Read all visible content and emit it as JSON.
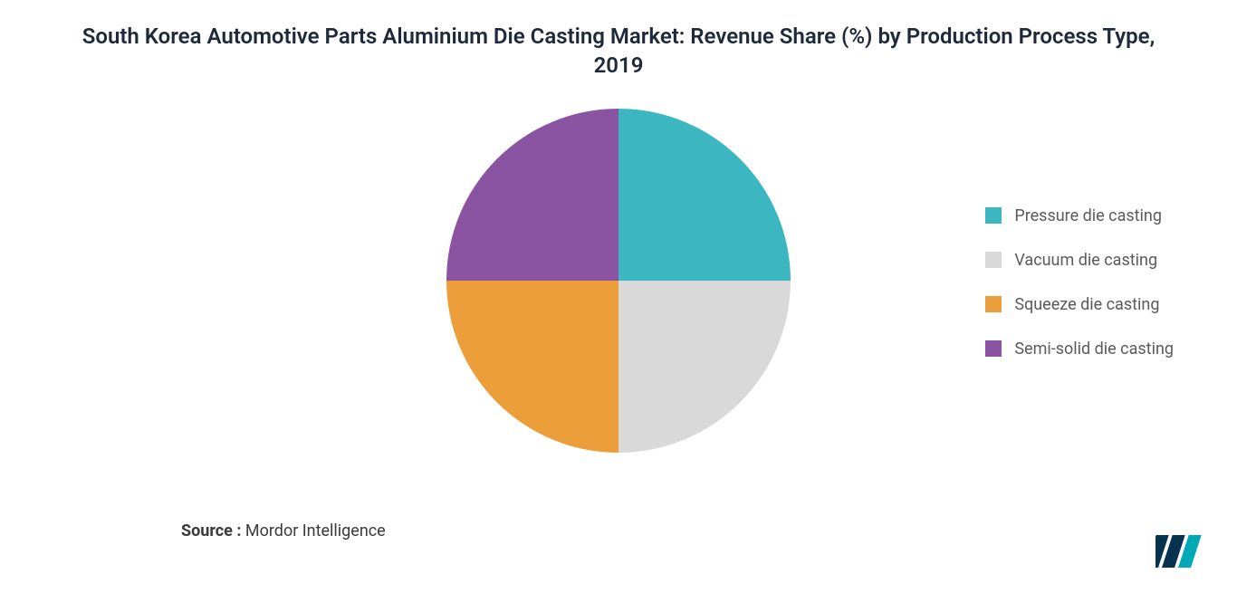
{
  "title": "South Korea Automotive Parts Aluminium Die Casting Market: Revenue Share (%) by Production Process Type, 2019",
  "source_label": "Source :",
  "source_value": "Mordor Intelligence",
  "chart": {
    "type": "pie",
    "radius": 190,
    "background_color": "#ffffff",
    "slices": [
      {
        "label": "Pressure die casting",
        "value": 25,
        "color": "#3cb6c0"
      },
      {
        "label": "Vacuum die casting",
        "value": 25,
        "color": "#d9d9d9"
      },
      {
        "label": "Squeeze die casting",
        "value": 25,
        "color": "#ec9e3a"
      },
      {
        "label": "Semi-solid die casting",
        "value": 25,
        "color": "#8a54a2"
      }
    ],
    "legend": {
      "position": "right",
      "swatch_size": 18,
      "label_fontsize": 18,
      "label_color": "#5a5a5a"
    },
    "title_fontsize": 24,
    "title_color": "#1e2a3a"
  },
  "logo": {
    "name": "mordor-intelligence-logo",
    "bar_colors": [
      "#06344f",
      "#06344f",
      "#00a9b5"
    ]
  }
}
